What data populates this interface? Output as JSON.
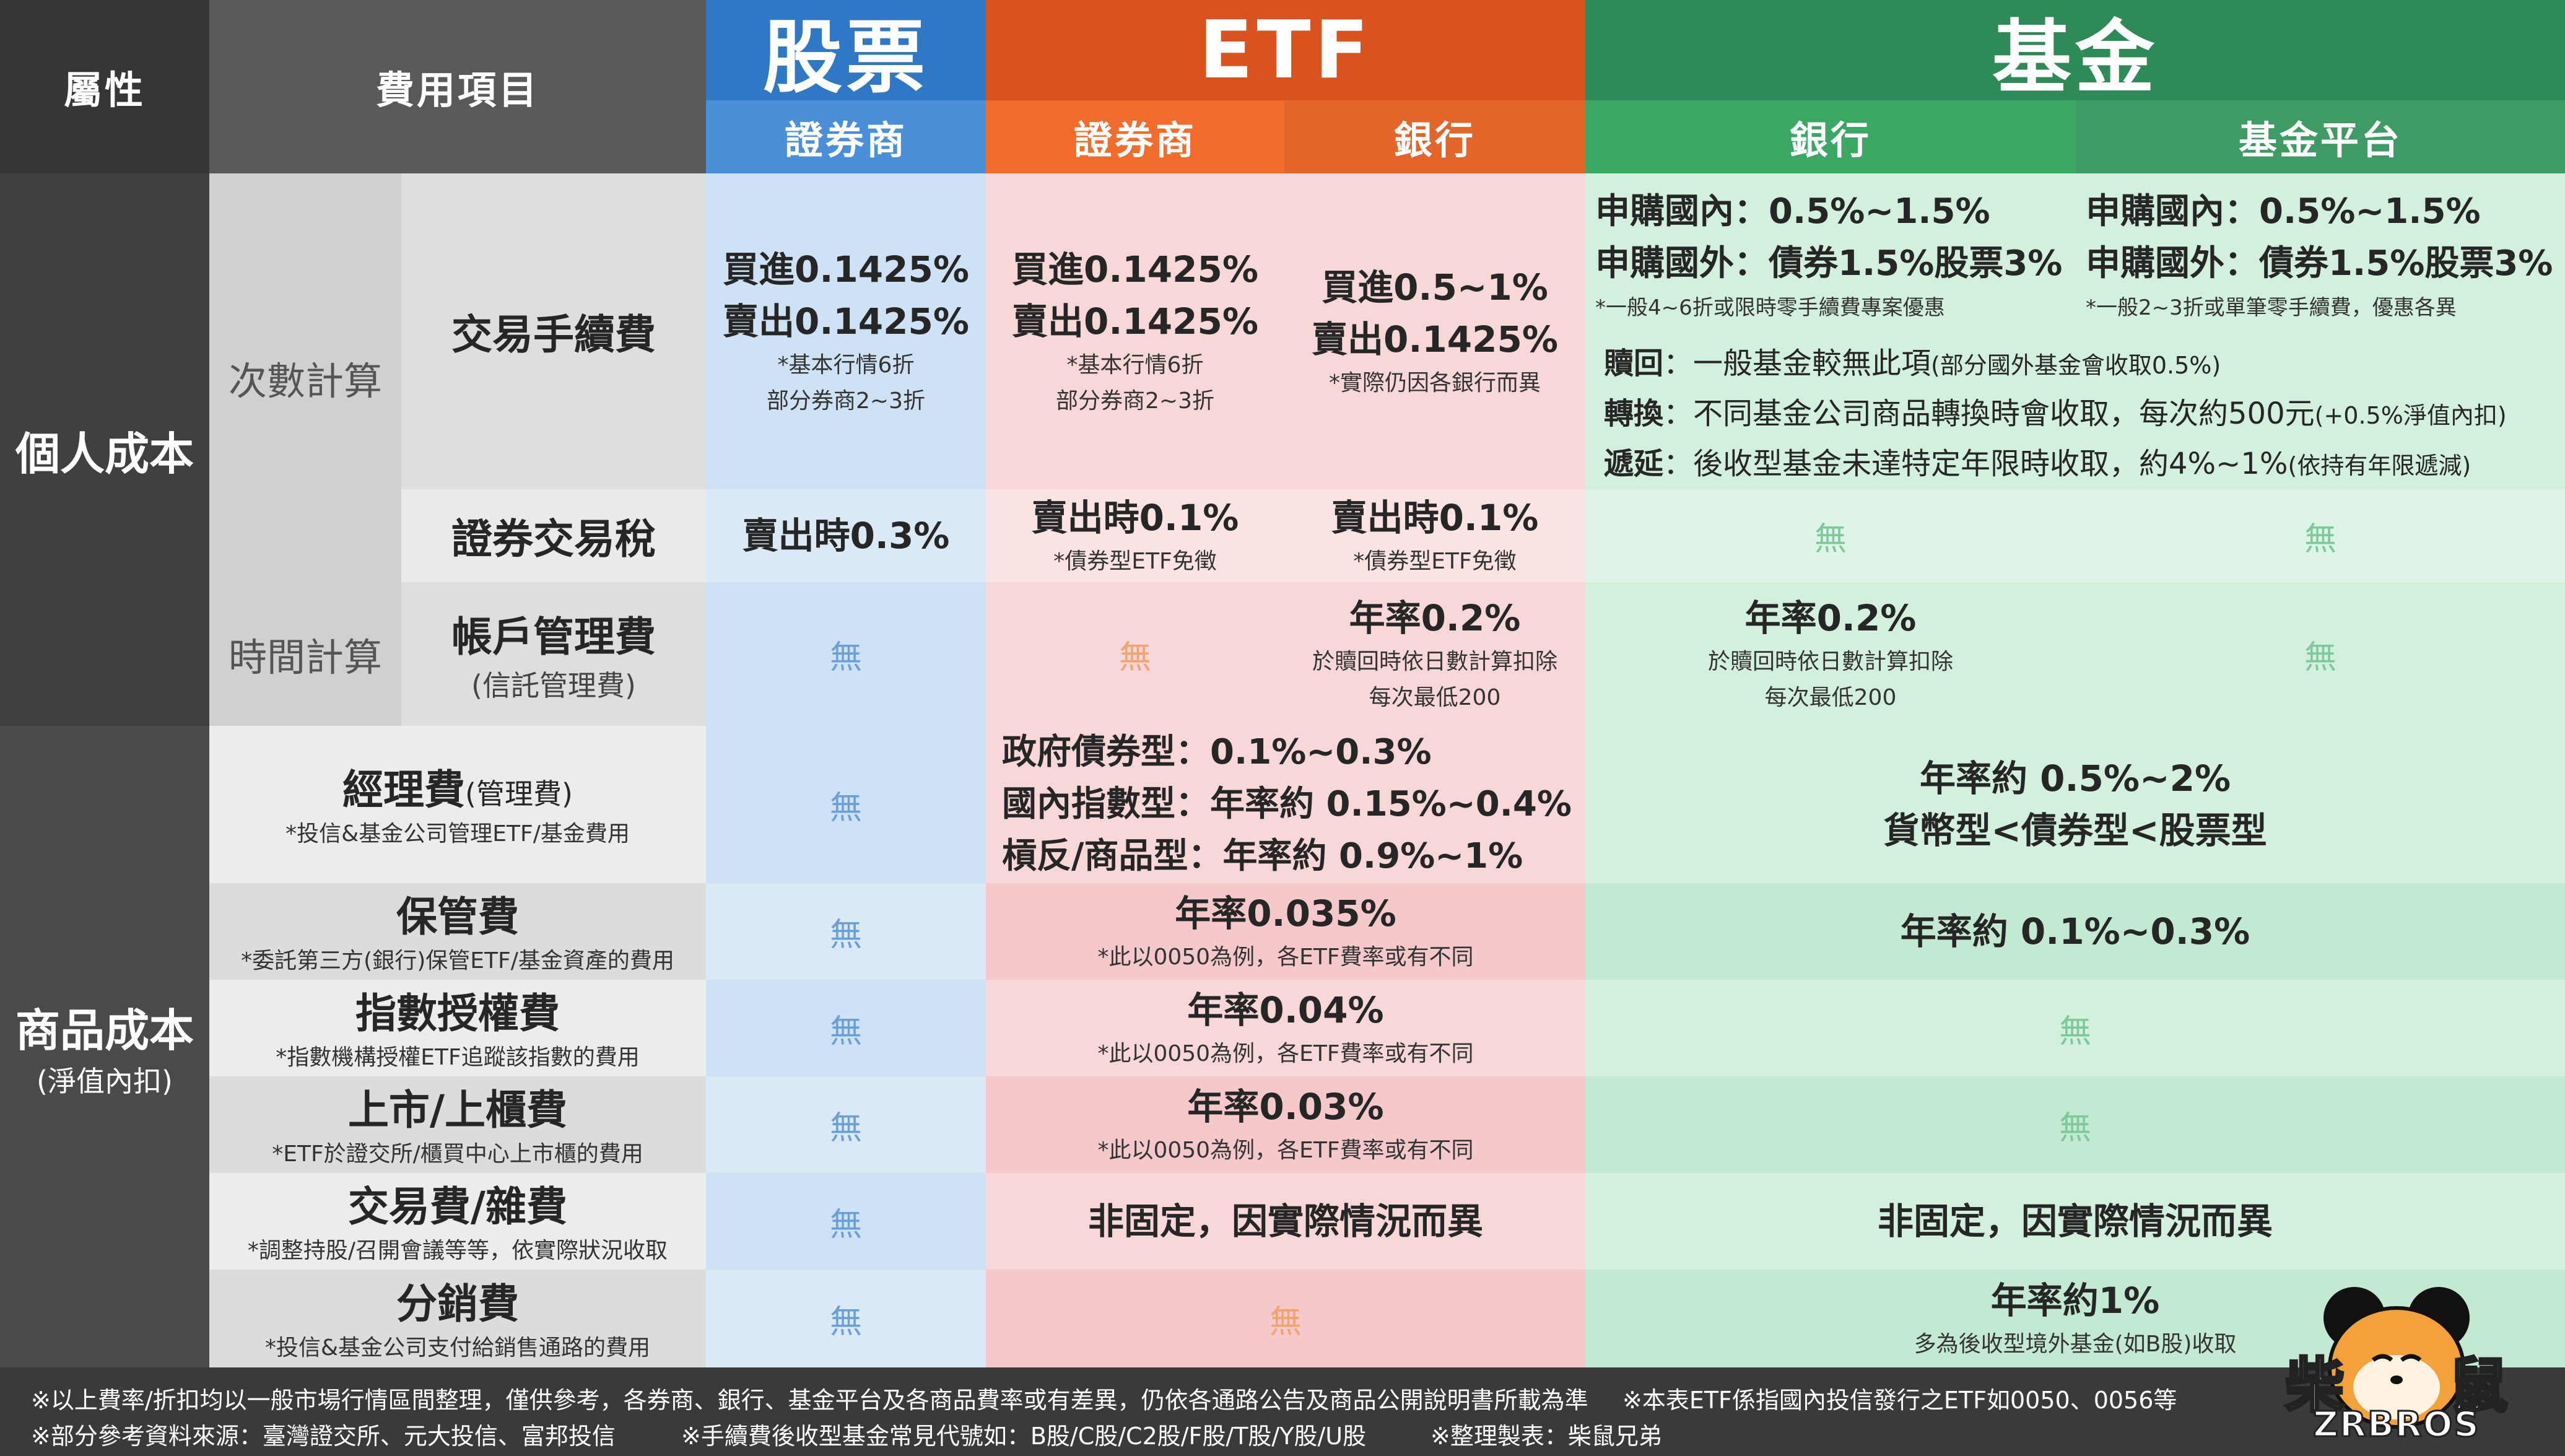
{
  "header": {
    "attr": "屬性",
    "fee_item": "費用項目",
    "stock": "股票",
    "etf": "ETF",
    "fund": "基金",
    "broker": "證券商",
    "etf_broker": "證券商",
    "etf_bank": "銀行",
    "fund_bank": "銀行",
    "fund_platform": "基金平台"
  },
  "personal": {
    "title": "個人成本",
    "count_calc": "次數計算",
    "time_calc": "時間計算",
    "fee_label": "交易手續費",
    "tax_label": "證券交易稅",
    "acct_label": "帳戶管理費",
    "acct_sub": "(信託管理費)",
    "stock_fee": {
      "l1": "買進0.1425%",
      "l2": "賣出0.1425%",
      "n1": "*基本行情6折",
      "n2": "部分券商2~3折"
    },
    "etf_broker_fee": {
      "l1": "買進0.1425%",
      "l2": "賣出0.1425%",
      "n1": "*基本行情6折",
      "n2": "部分券商2~3折"
    },
    "etf_bank_fee": {
      "l1": "買進0.5~1%",
      "l2": "賣出0.1425%",
      "n1": "*實際仍因各銀行而異"
    },
    "fund_bank_fee": {
      "l1": "申購國內：0.5%~1.5%",
      "l2": "申購國外：債券1.5%股票3%",
      "n1": "*一般4~6折或限時零手續費專案優惠"
    },
    "fund_platform_fee": {
      "l1": "申購國內：0.5%~1.5%",
      "l2": "申購國外：債券1.5%股票3%",
      "n1": "*一般2~3折或單筆零手續費，優惠各異"
    },
    "redeem": {
      "k": "贖回",
      "v": "：一般基金較無此項",
      "s": "(部分國外基金會收取0.5%)"
    },
    "switch": {
      "k": "轉換",
      "v": "：不同基金公司商品轉換時會收取，每次約500元",
      "s": "(+0.5%淨值內扣)"
    },
    "defer": {
      "k": "遞延",
      "v": "：後收型基金未達特定年限時收取，約4%~1%",
      "s": "(依持有年限遞減)"
    },
    "stock_tax": "賣出時0.3%",
    "etf_broker_tax": {
      "l1": "賣出時0.1%",
      "n1": "*債券型ETF免徵"
    },
    "etf_bank_tax": {
      "l1": "賣出時0.1%",
      "n1": "*債券型ETF免徵"
    },
    "none": "無",
    "etf_bank_acct": {
      "l1": "年率0.2%",
      "n1": "於贖回時依日數計算扣除",
      "n2": "每次最低200"
    },
    "fund_bank_acct": {
      "l1": "年率0.2%",
      "n1": "於贖回時依日數計算扣除",
      "n2": "每次最低200"
    }
  },
  "product": {
    "title": "商品成本",
    "subtitle": "(淨值內扣)",
    "mgmt": {
      "label": "經理費",
      "label_sm": "(管理費)",
      "note": "*投信&基金公司管理ETF/基金費用",
      "etf": [
        "政府債券型：0.1%~0.3%",
        "國內指數型：年率約 0.15%~0.4%",
        "槓反/商品型：年率約 0.9%~1%"
      ],
      "fund": [
        "年率約 0.5%~2%",
        "貨幣型<債券型<股票型"
      ]
    },
    "custody": {
      "label": "保管費",
      "note": "*委託第三方(銀行)保管ETF/基金資產的費用",
      "etf": "年率0.035%",
      "etf_note": "*此以0050為例，各ETF費率或有不同",
      "fund": "年率約 0.1%~0.3%"
    },
    "index": {
      "label": "指數授權費",
      "note": "*指數機構授權ETF追蹤該指數的費用",
      "etf": "年率0.04%",
      "etf_note": "*此以0050為例，各ETF費率或有不同"
    },
    "listing": {
      "label": "上市/上櫃費",
      "note": "*ETF於證交所/櫃買中心上市櫃的費用",
      "etf": "年率0.03%",
      "etf_note": "*此以0050為例，各ETF費率或有不同"
    },
    "trade": {
      "label": "交易費/雜費",
      "note": "*調整持股/召開會議等等，依實際狀況收取",
      "etf": "非固定，因實際情況而異",
      "fund": "非固定，因實際情況而異"
    },
    "dist": {
      "label": "分銷費",
      "note": "*投信&基金公司支付給銷售通路的費用",
      "fund": "年率約1%",
      "fund_note": "多為後收型境外基金(如B股)收取"
    },
    "none": "無"
  },
  "footer": {
    "line1a": "※以上費率/折扣均以一般市場行情區間整理，僅供參考，各券商、銀行、基金平台及各商品費率或有差異，仍依各通路公告及商品公開說明書所載為準",
    "line1b": "※本表ETF係指國內投信發行之ETF如0050、0056等",
    "line2a": "※部分參考資料來源：臺灣證交所、元大投信、富邦投信",
    "line2b": "※手續費後收型基金常見代號如：B股/C股/C2股/F股/T股/Y股/U股",
    "line2c": "※整理製表：柴鼠兄弟"
  },
  "logo": {
    "cn": "柴鼠",
    "en": "ZRBROS"
  },
  "colors": {
    "stock_head": "#2f78c6",
    "etf_head": "#d9531e",
    "fund_head": "#2e8b57",
    "stock_body": "#cfe2f5",
    "etf_body": "#f8d7d9",
    "fund_body": "#d3efde"
  }
}
